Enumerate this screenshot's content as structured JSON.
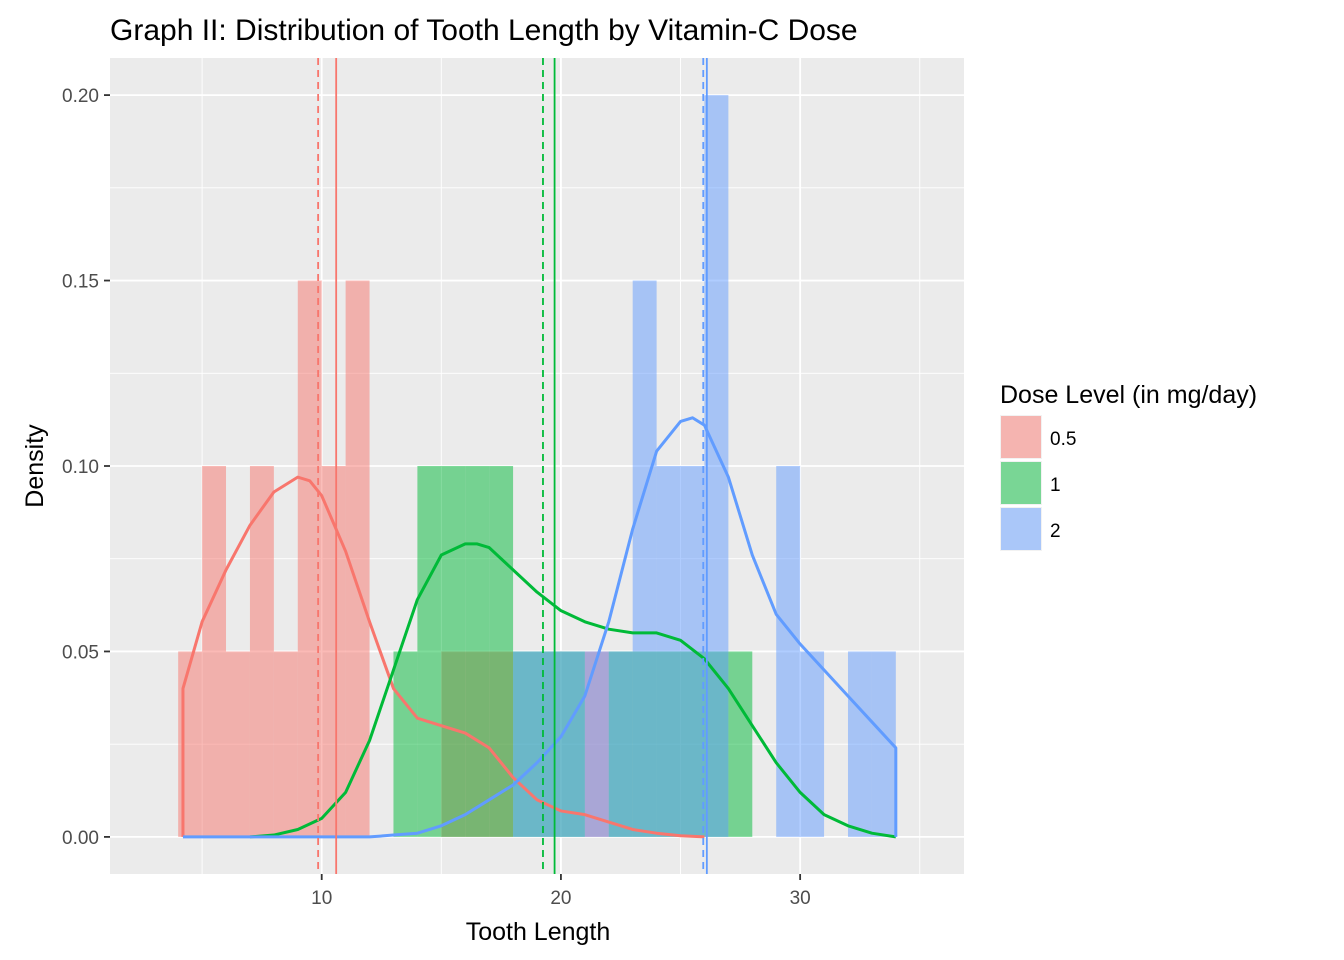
{
  "chart_data": {
    "type": "histogram",
    "title": "Graph II: Distribution of Tooth Length by Vitamin-C Dose",
    "xlabel": "Tooth Length",
    "ylabel": "Density",
    "xlim": [
      1.15,
      36.85
    ],
    "ylim": [
      -0.01,
      0.21
    ],
    "x_ticks": [
      10,
      20,
      30
    ],
    "y_ticks": [
      0.0,
      0.05,
      0.1,
      0.15,
      0.2
    ],
    "y_tick_labels": [
      "0.00",
      "0.05",
      "0.10",
      "0.15",
      "0.20"
    ],
    "grid": true,
    "bin_width": 1,
    "legend": {
      "title": "Dose Level (in mg/day)",
      "position": "right",
      "entries": [
        "0.5",
        "1",
        "2"
      ]
    },
    "colors": {
      "0.5": "#F8766D",
      "1": "#00BA38",
      "2": "#619CFF",
      "panel": "#EBEBEB",
      "grid": "#FFFFFF"
    },
    "series": [
      {
        "name": "0.5",
        "color": "#F8766D",
        "bins": [
          {
            "x0": 4,
            "x1": 5,
            "density": 0.05
          },
          {
            "x0": 5,
            "x1": 6,
            "density": 0.1
          },
          {
            "x0": 6,
            "x1": 7,
            "density": 0.05
          },
          {
            "x0": 7,
            "x1": 8,
            "density": 0.1
          },
          {
            "x0": 8,
            "x1": 9,
            "density": 0.05
          },
          {
            "x0": 9,
            "x1": 10,
            "density": 0.15
          },
          {
            "x0": 10,
            "x1": 11,
            "density": 0.1
          },
          {
            "x0": 11,
            "x1": 12,
            "density": 0.15
          },
          {
            "x0": 15,
            "x1": 16,
            "density": 0.05
          },
          {
            "x0": 16,
            "x1": 17,
            "density": 0.05
          },
          {
            "x0": 17,
            "x1": 18,
            "density": 0.05
          },
          {
            "x0": 21,
            "x1": 22,
            "density": 0.05
          }
        ],
        "density_curve": {
          "x": [
            4.2,
            5,
            6,
            7,
            8,
            9,
            9.5,
            10,
            11,
            12,
            13,
            14,
            15,
            16,
            17,
            18,
            19,
            20,
            21,
            22,
            23,
            24,
            25,
            26
          ],
          "y": [
            0.04,
            0.058,
            0.072,
            0.084,
            0.093,
            0.097,
            0.096,
            0.092,
            0.077,
            0.058,
            0.04,
            0.032,
            0.03,
            0.028,
            0.024,
            0.016,
            0.01,
            0.007,
            0.006,
            0.004,
            0.002,
            0.001,
            0.0003,
            0.0
          ]
        },
        "median": 9.85,
        "mean": 10.605
      },
      {
        "name": "1",
        "color": "#00BA38",
        "bins": [
          {
            "x0": 13,
            "x1": 14,
            "density": 0.05
          },
          {
            "x0": 14,
            "x1": 15,
            "density": 0.1
          },
          {
            "x0": 15,
            "x1": 16,
            "density": 0.1
          },
          {
            "x0": 16,
            "x1": 17,
            "density": 0.1
          },
          {
            "x0": 17,
            "x1": 18,
            "density": 0.1
          },
          {
            "x0": 18,
            "x1": 19,
            "density": 0.05
          },
          {
            "x0": 19,
            "x1": 20,
            "density": 0.05
          },
          {
            "x0": 20,
            "x1": 21,
            "density": 0.05
          },
          {
            "x0": 22,
            "x1": 23,
            "density": 0.05
          },
          {
            "x0": 23,
            "x1": 24,
            "density": 0.05
          },
          {
            "x0": 24,
            "x1": 25,
            "density": 0.05
          },
          {
            "x0": 25,
            "x1": 26,
            "density": 0.05
          },
          {
            "x0": 26,
            "x1": 27,
            "density": 0.05
          },
          {
            "x0": 27,
            "x1": 28,
            "density": 0.05
          }
        ],
        "density_curve": {
          "x": [
            7,
            8,
            9,
            10,
            11,
            12,
            13,
            14,
            15,
            16,
            16.5,
            17,
            18,
            19,
            20,
            21,
            22,
            23,
            24,
            25,
            26,
            27,
            28,
            29,
            30,
            31,
            32,
            33,
            34
          ],
          "y": [
            0.0,
            0.0005,
            0.002,
            0.005,
            0.012,
            0.026,
            0.045,
            0.064,
            0.076,
            0.079,
            0.079,
            0.078,
            0.072,
            0.066,
            0.061,
            0.058,
            0.056,
            0.055,
            0.055,
            0.053,
            0.048,
            0.04,
            0.03,
            0.02,
            0.012,
            0.006,
            0.003,
            0.001,
            0.0
          ]
        },
        "median": 19.25,
        "mean": 19.735
      },
      {
        "name": "2",
        "color": "#619CFF",
        "bins": [
          {
            "x0": 18,
            "x1": 19,
            "density": 0.05
          },
          {
            "x0": 19,
            "x1": 20,
            "density": 0.05
          },
          {
            "x0": 20,
            "x1": 21,
            "density": 0.05
          },
          {
            "x0": 21,
            "x1": 22,
            "density": 0.05
          },
          {
            "x0": 22,
            "x1": 23,
            "density": 0.05
          },
          {
            "x0": 23,
            "x1": 24,
            "density": 0.15
          },
          {
            "x0": 24,
            "x1": 25,
            "density": 0.1
          },
          {
            "x0": 25,
            "x1": 26,
            "density": 0.1
          },
          {
            "x0": 26,
            "x1": 27,
            "density": 0.2
          },
          {
            "x0": 29,
            "x1": 30,
            "density": 0.1
          },
          {
            "x0": 30,
            "x1": 31,
            "density": 0.05
          },
          {
            "x0": 32,
            "x1": 33,
            "density": 0.05
          },
          {
            "x0": 33,
            "x1": 34,
            "density": 0.05
          }
        ],
        "density_curve": {
          "x": [
            4.2,
            12,
            13,
            14,
            15,
            16,
            17,
            18,
            19,
            20,
            21,
            22,
            23,
            24,
            25,
            25.5,
            26,
            27,
            28,
            29,
            30,
            31,
            32,
            33,
            34
          ],
          "y": [
            0.0,
            0.0,
            0.0005,
            0.001,
            0.003,
            0.006,
            0.01,
            0.014,
            0.02,
            0.027,
            0.038,
            0.058,
            0.083,
            0.104,
            0.112,
            0.113,
            0.111,
            0.097,
            0.076,
            0.06,
            0.052,
            0.045,
            0.038,
            0.031,
            0.024
          ]
        },
        "median": 25.95,
        "mean": 26.1
      }
    ]
  }
}
